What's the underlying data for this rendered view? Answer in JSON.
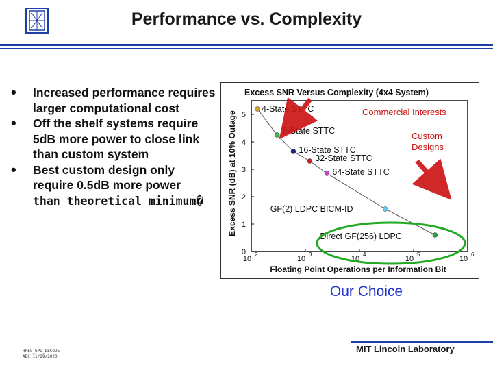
{
  "slide": {
    "title": "Performance vs. Complexity",
    "bullets": [
      "Increased performance requires larger computational cost",
      "Off the shelf systems require 5dB more power to close link than custom system",
      "Best custom design only require 0.5dB more power"
    ],
    "bullet_tail": "than theoretical minimum�",
    "callout": "Our Choice",
    "footer_left": [
      "HPEC_GPU_DECODE",
      "ADC 11/29/2020"
    ],
    "footer_right": "MIT Lincoln Laboratory",
    "logo_icon": "lincoln-lab-logo-icon"
  },
  "colors": {
    "accent_blue": "#1f3fa8",
    "arrow_red": "#cc1111",
    "ellipse_green": "#22aa22",
    "callout_blue": "#2233cc"
  },
  "chart_data": {
    "type": "scatter",
    "title": "Excess SNR Versus Complexity (4x4 System)",
    "xlabel": "Floating Point Operations per Information Bit",
    "ylabel": "Excess SNR (dB) at 10% Outage",
    "x_scale": "log",
    "xlim": [
      100,
      1000000
    ],
    "ylim": [
      0,
      5.5
    ],
    "x_ticks": [
      "10^2",
      "10^3",
      "10^4",
      "10^5",
      "10^6"
    ],
    "x_tick_values": [
      100,
      1000,
      10000,
      100000,
      1000000
    ],
    "y_ticks": [
      "0",
      "1",
      "2",
      "3",
      "4",
      "5"
    ],
    "y_tick_values": [
      0,
      1,
      2,
      3,
      4,
      5
    ],
    "points": [
      {
        "label": "4-State STTC",
        "x": 130,
        "y": 5.2,
        "color": "#d4a020"
      },
      {
        "label": "8-State STTC",
        "x": 300,
        "y": 4.25,
        "color": "#33bb55"
      },
      {
        "label": "16-State STTC",
        "x": 600,
        "y": 3.65,
        "color": "#1a237e"
      },
      {
        "label": "32-State STTC",
        "x": 1200,
        "y": 3.3,
        "color": "#cc2222"
      },
      {
        "label": "64-State STTC",
        "x": 2500,
        "y": 2.85,
        "color": "#cc44cc"
      },
      {
        "label": "GF(2) LDPC BICM-ID",
        "x": 30000,
        "y": 1.55,
        "color": "#66ccee"
      },
      {
        "label": "Direct GF(256) LDPC",
        "x": 250000,
        "y": 0.6,
        "color": "#22aa44"
      }
    ],
    "annotations": [
      "Commercial Interests",
      "Custom Designs"
    ]
  }
}
